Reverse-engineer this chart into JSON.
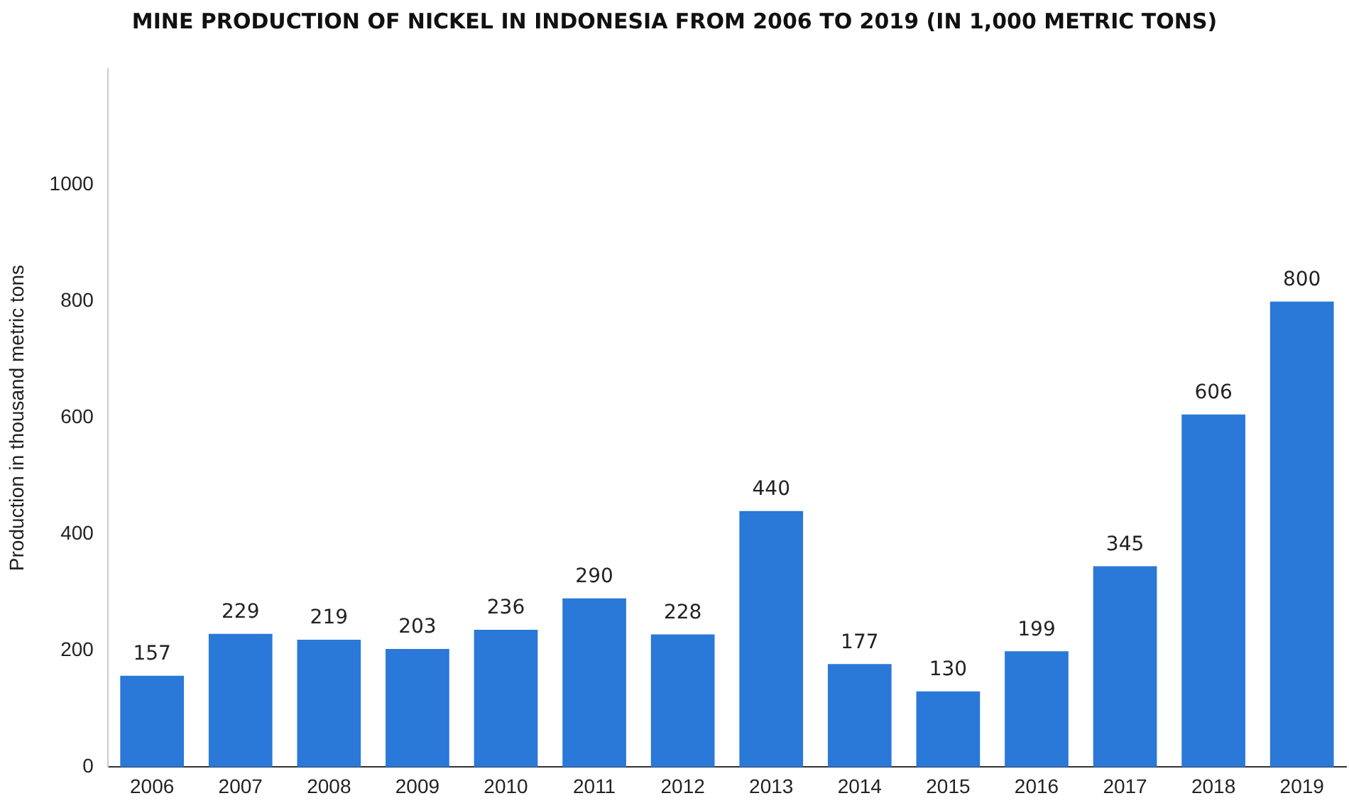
{
  "chart_data": {
    "type": "bar",
    "title": "MINE PRODUCTION OF NICKEL IN INDONESIA FROM 2006 TO 2019 (IN 1,000 METRIC TONS)",
    "ylabel": "Production in thousand metric tons",
    "categories": [
      "2006",
      "2007",
      "2008",
      "2009",
      "2010",
      "2011",
      "2012",
      "2013",
      "2014",
      "2015",
      "2016",
      "2017",
      "2018",
      "2019"
    ],
    "values": [
      157,
      229,
      219,
      203,
      236,
      290,
      228,
      440,
      177,
      130,
      199,
      345,
      606,
      800
    ],
    "color": "#2a78d8",
    "ylim": [
      0,
      1200
    ],
    "yticks": [
      0,
      200,
      400,
      600,
      800,
      1000
    ],
    "grid": false,
    "legend": false,
    "data_labels": true
  }
}
